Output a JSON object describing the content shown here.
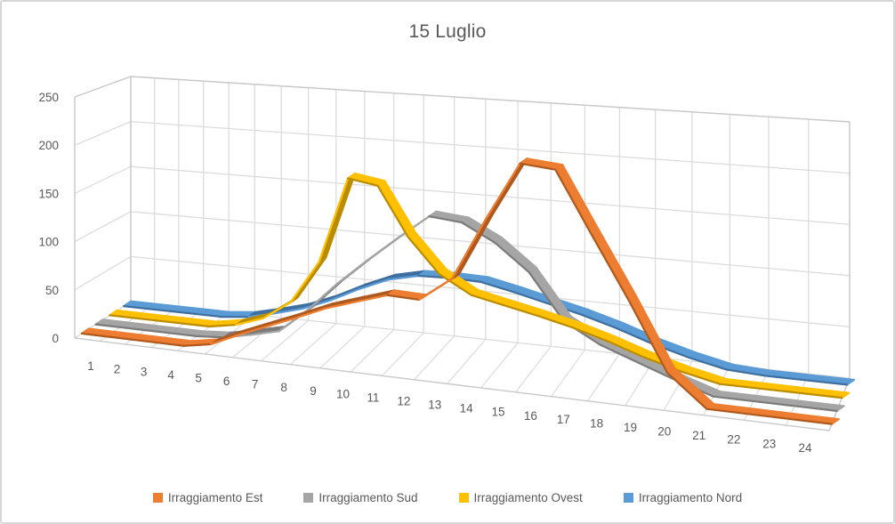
{
  "chart_title": "15 Luglio",
  "y_axis": {
    "min": 0,
    "max": 250,
    "step": 50,
    "tick_labels": [
      "0",
      "50",
      "100",
      "150",
      "200",
      "250"
    ]
  },
  "x_axis": {
    "tick_labels": [
      "1",
      "2",
      "3",
      "4",
      "5",
      "6",
      "7",
      "8",
      "9",
      "10",
      "11",
      "12",
      "13",
      "14",
      "15",
      "16",
      "17",
      "18",
      "19",
      "20",
      "21",
      "22",
      "23",
      "24"
    ]
  },
  "legend": {
    "position": "bottom",
    "items": [
      {
        "label": "Irraggiamento Est",
        "color": "#ED7D31"
      },
      {
        "label": "Irraggiamento Sud",
        "color": "#A5A5A5"
      },
      {
        "label": "Irraggiamento Ovest",
        "color": "#FFC000"
      },
      {
        "label": "Irraggiamento Nord",
        "color": "#5B9BD5"
      }
    ]
  },
  "colors": {
    "grid": "#DCDCDC",
    "wall_edge": "#C9C9C9",
    "text": "#595959",
    "border": "#D6D6D6",
    "background": "#FFFFFF"
  },
  "chart_data": {
    "type": "line",
    "projection": "3d",
    "title": "15 Luglio",
    "xlabel": "",
    "ylabel": "",
    "ylim": [
      0,
      250
    ],
    "grid": true,
    "legend_position": "bottom",
    "categories": [
      1,
      2,
      3,
      4,
      5,
      6,
      7,
      8,
      9,
      10,
      11,
      12,
      13,
      14,
      15,
      16,
      17,
      18,
      19,
      20,
      21,
      22,
      23,
      24
    ],
    "series": [
      {
        "name": "Irraggiamento Est",
        "color": "#ED7D31",
        "shade": "#AE5A1F",
        "values": [
          0,
          0,
          0,
          0,
          0,
          5,
          18,
          30,
          42,
          55,
          65,
          75,
          74,
          98,
          160,
          218,
          215,
          155,
          95,
          30,
          0,
          0,
          0,
          0
        ]
      },
      {
        "name": "Irraggiamento Sud",
        "color": "#A5A5A5",
        "shade": "#7B7B7B",
        "values": [
          0,
          0,
          0,
          0,
          0,
          2,
          8,
          15,
          40,
          70,
          97,
          123,
          148,
          145,
          128,
          102,
          57,
          38,
          25,
          12,
          0,
          0,
          0,
          0
        ]
      },
      {
        "name": "Irraggiamento Ovest",
        "color": "#FFC000",
        "shade": "#BA8C00",
        "values": [
          0,
          0,
          0,
          0,
          0,
          5,
          15,
          35,
          80,
          170,
          165,
          115,
          80,
          62,
          55,
          48,
          40,
          30,
          18,
          8,
          0,
          0,
          0,
          0
        ]
      },
      {
        "name": "Irraggiamento Nord",
        "color": "#5B9BD5",
        "shade": "#3E6F9F",
        "values": [
          0,
          0,
          0,
          0,
          0,
          3,
          10,
          18,
          30,
          45,
          58,
          65,
          66,
          65,
          58,
          50,
          42,
          32,
          20,
          10,
          2,
          0,
          0,
          0
        ]
      }
    ]
  }
}
